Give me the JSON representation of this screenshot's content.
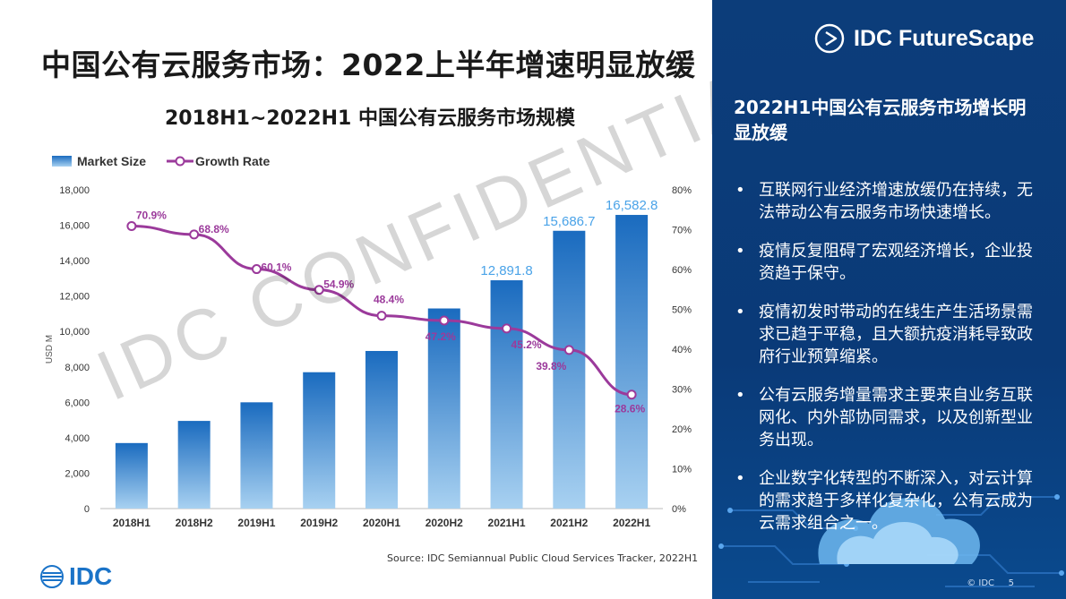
{
  "slide": {
    "title": "中国公有云服务市场：2022上半年增速明显放缓",
    "source": "Source: IDC Semiannual Public Cloud Services Tracker, 2022H1",
    "logo_text": "IDC",
    "watermark": "IDC CONFIDENTIAL"
  },
  "panel": {
    "brand": "IDC FutureScape",
    "title": "2022H1中国公有云服务市场增长明显放缓",
    "bullets": [
      "互联网行业经济增速放缓仍在持续，无法带动公有云服务市场快速增长。",
      "疫情反复阻碍了宏观经济增长，企业投资趋于保守。",
      "疫情初发时带动的在线生产生活场景需求已趋于平稳，且大额抗疫消耗导致政府行业预算缩紧。",
      "公有云服务增量需求主要来自业务互联网化、内外部协同需求，以及创新型业务出现。",
      "企业数字化转型的不断深入，对云计算的需求趋于多样化复杂化，公有云成为云需求组合之一。"
    ],
    "footer_ref": "© IDC",
    "page_number": "5"
  },
  "colors": {
    "bar_top": "#1a6bbf",
    "bar_bottom": "#a8d1f1",
    "line": "#9b3a9b",
    "panel_bg": "#0c3d7a"
  },
  "chart_data": {
    "type": "bar",
    "title": "2018H1~2022H1 中国公有云服务市场规模",
    "categories": [
      "2018H1",
      "2018H2",
      "2019H1",
      "2019H2",
      "2020H1",
      "2020H2",
      "2021H1",
      "2021H2",
      "2022H1"
    ],
    "series": [
      {
        "name": "Market Size",
        "type": "bar",
        "axis": "left",
        "values": [
          3700,
          4950,
          6000,
          7700,
          8900,
          11300,
          12891.8,
          15686.7,
          16582.8
        ],
        "labels": [
          null,
          null,
          null,
          null,
          null,
          null,
          "12,891.8",
          "15,686.7",
          "16,582.8"
        ]
      },
      {
        "name": "Growth Rate",
        "type": "line",
        "axis": "right",
        "values": [
          70.9,
          68.8,
          60.1,
          54.9,
          48.4,
          47.2,
          45.2,
          39.8,
          28.6
        ],
        "labels": [
          "70.9%",
          "68.8%",
          "60.1%",
          "54.9%",
          "48.4%",
          "47.2%",
          "45.2%",
          "39.8%",
          "28.6%"
        ]
      }
    ],
    "ylabel": "USD M",
    "ylim": [
      0,
      18000
    ],
    "yticks": [
      "0",
      "2,000",
      "4,000",
      "6,000",
      "8,000",
      "10,000",
      "12,000",
      "14,000",
      "16,000",
      "18,000"
    ],
    "y2lim": [
      0,
      80
    ],
    "y2ticks": [
      "0%",
      "10%",
      "20%",
      "30%",
      "40%",
      "50%",
      "60%",
      "70%",
      "80%"
    ],
    "legend": "top-left"
  }
}
